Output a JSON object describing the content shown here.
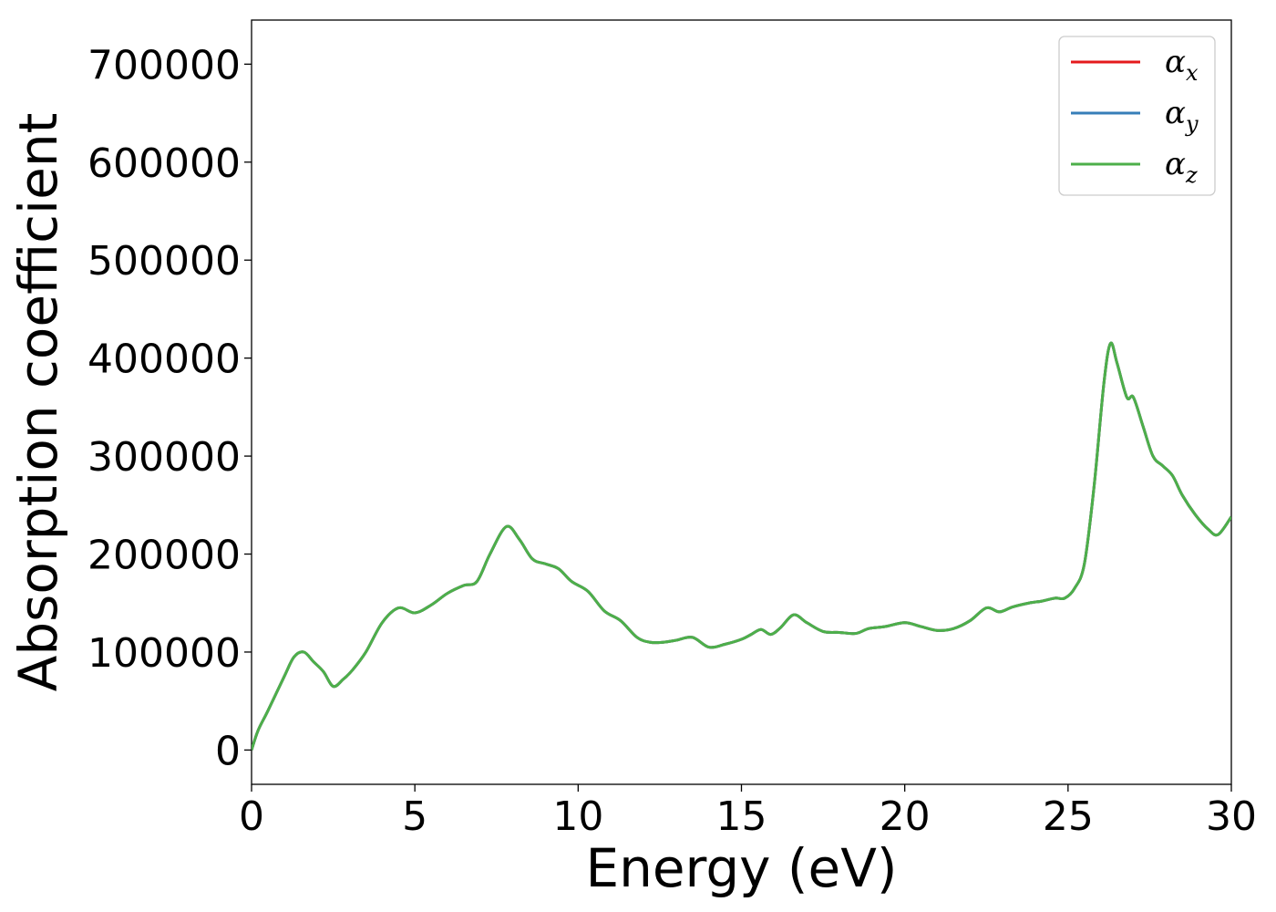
{
  "chart_data": {
    "type": "line",
    "title": "",
    "xlabel": "Energy (eV)",
    "ylabel": "Absorption coefficient",
    "xlim": [
      0,
      30
    ],
    "ylim": [
      -35000,
      745000
    ],
    "xticks": [
      0,
      5,
      10,
      15,
      20,
      25,
      30
    ],
    "yticks": [
      0,
      100000,
      200000,
      300000,
      400000,
      500000,
      600000,
      700000
    ],
    "grid": false,
    "legend_position": "top-right",
    "series": [
      {
        "name": "α",
        "subscript": "x",
        "color": "#e41a1c"
      },
      {
        "name": "α",
        "subscript": "y",
        "color": "#377eb8"
      },
      {
        "name": "α",
        "subscript": "z",
        "color": "#4daf4a"
      }
    ],
    "x": [
      0,
      0.2,
      0.5,
      1.0,
      1.3,
      1.6,
      1.9,
      2.2,
      2.5,
      2.8,
      3.1,
      3.5,
      4.0,
      4.5,
      5.0,
      5.5,
      6.0,
      6.5,
      6.9,
      7.3,
      7.8,
      8.2,
      8.6,
      9.0,
      9.4,
      9.8,
      10.3,
      10.8,
      11.3,
      11.8,
      12.2,
      12.6,
      13.0,
      13.5,
      14.0,
      14.5,
      15.0,
      15.3,
      15.6,
      15.9,
      16.2,
      16.6,
      17.0,
      17.5,
      18.0,
      18.5,
      18.9,
      19.4,
      20.0,
      20.5,
      21.0,
      21.5,
      22.0,
      22.5,
      22.9,
      23.3,
      23.8,
      24.2,
      24.6,
      24.9,
      25.2,
      25.5,
      25.8,
      26.1,
      26.3,
      26.5,
      26.8,
      27.0,
      27.3,
      27.6,
      27.9,
      28.2,
      28.5,
      28.9,
      29.3,
      29.6,
      30.0
    ],
    "values": [
      0,
      20000,
      40000,
      75000,
      95000,
      100000,
      90000,
      80000,
      65000,
      72000,
      82000,
      100000,
      130000,
      145000,
      140000,
      148000,
      160000,
      168000,
      172000,
      200000,
      228000,
      215000,
      195000,
      190000,
      185000,
      172000,
      162000,
      142000,
      132000,
      115000,
      110000,
      110000,
      112000,
      115000,
      105000,
      108000,
      113000,
      118000,
      123000,
      118000,
      125000,
      138000,
      130000,
      121000,
      120000,
      119000,
      124000,
      126000,
      130000,
      126000,
      122000,
      124000,
      132000,
      145000,
      141000,
      146000,
      150000,
      152000,
      155000,
      155000,
      165000,
      190000,
      270000,
      375000,
      415000,
      395000,
      360000,
      360000,
      330000,
      300000,
      290000,
      280000,
      260000,
      240000,
      225000,
      220000,
      238000
    ]
  }
}
